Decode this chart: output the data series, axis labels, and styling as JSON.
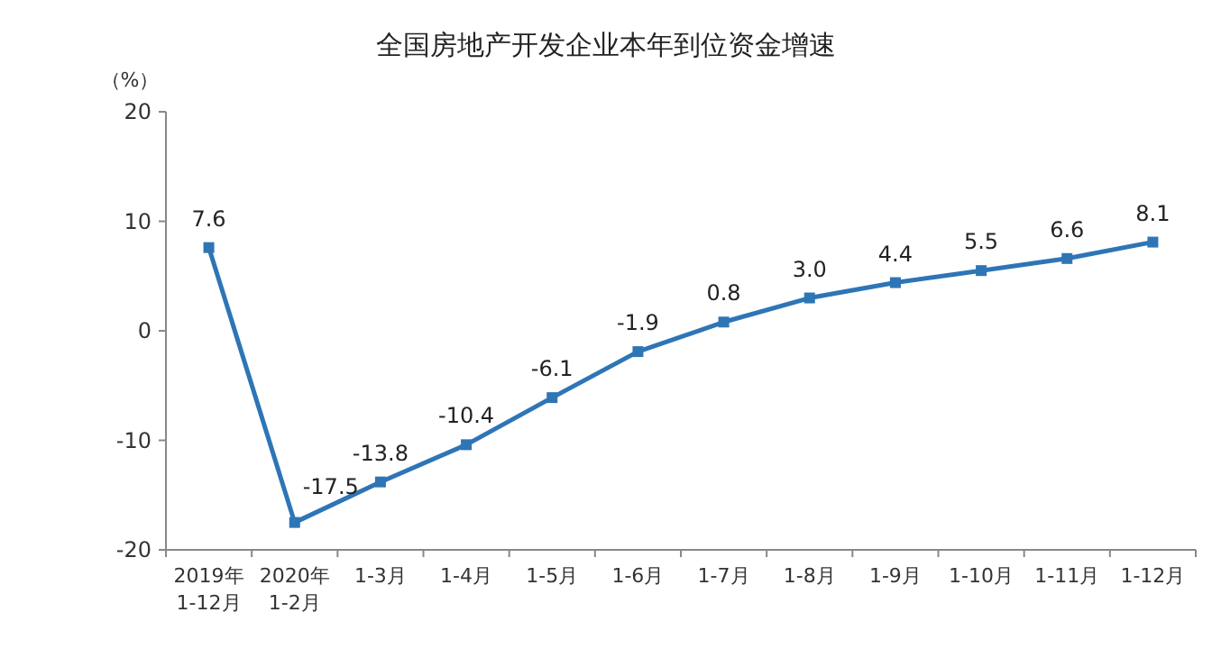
{
  "chart_data": {
    "type": "line",
    "title": "全国房地产开发企业本年到位资金增速",
    "ylabel": "（%）",
    "categories": [
      "2019年\n1-12月",
      "2020年\n1-2月",
      "1-3月",
      "1-4月",
      "1-5月",
      "1-6月",
      "1-7月",
      "1-8月",
      "1-9月",
      "1-10月",
      "1-11月",
      "1-12月"
    ],
    "series": [
      {
        "color": "#2e75b6",
        "values": [
          7.6,
          -17.5,
          -13.8,
          -10.4,
          -6.1,
          -1.9,
          0.8,
          3.0,
          4.4,
          5.5,
          6.6,
          8.1
        ],
        "value_labels": [
          "7.6",
          "-17.5",
          "-13.8",
          "-10.4",
          "-6.1",
          "-1.9",
          "0.8",
          "3.0",
          "4.4",
          "5.5",
          "6.6",
          "8.1"
        ]
      }
    ],
    "ylim": [
      -20,
      20
    ],
    "yticks": [
      -20,
      -10,
      0,
      10,
      20
    ],
    "marker": "square",
    "line_style": "solid",
    "grid": false
  }
}
